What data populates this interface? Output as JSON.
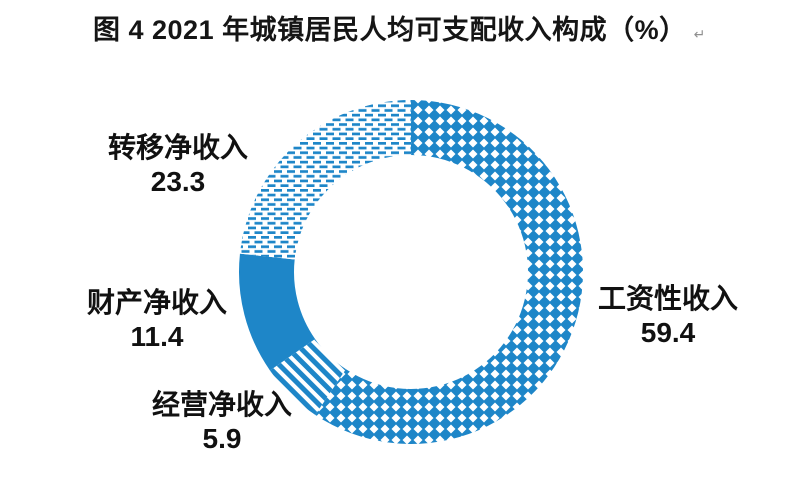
{
  "title": "图 4 2021 年城镇居民人均可支配收入构成（%）",
  "paragraph_mark": "↵",
  "chart_data": {
    "type": "pie",
    "subtype": "donut",
    "title": "图 4 2021 年城镇居民人均可支配收入构成（%）",
    "unit": "%",
    "start_angle_deg": 0,
    "direction": "clockwise",
    "donut_hole_ratio": 0.68,
    "accent_color": "#1E86C8",
    "pattern_background": "#FFFFFF",
    "label_color": "#111111",
    "legend_position": "callout-labels",
    "segments": [
      {
        "id": "wage",
        "label": "工资性收入",
        "value": 59.4,
        "pattern": "diamond-checker"
      },
      {
        "id": "business",
        "label": "经营净收入",
        "value": 5.9,
        "pattern": "diagonal-stripes"
      },
      {
        "id": "property",
        "label": "财产净收入",
        "value": 11.4,
        "pattern": "solid"
      },
      {
        "id": "transfer",
        "label": "转移净收入",
        "value": 23.3,
        "pattern": "dashed-horizontal"
      }
    ]
  }
}
